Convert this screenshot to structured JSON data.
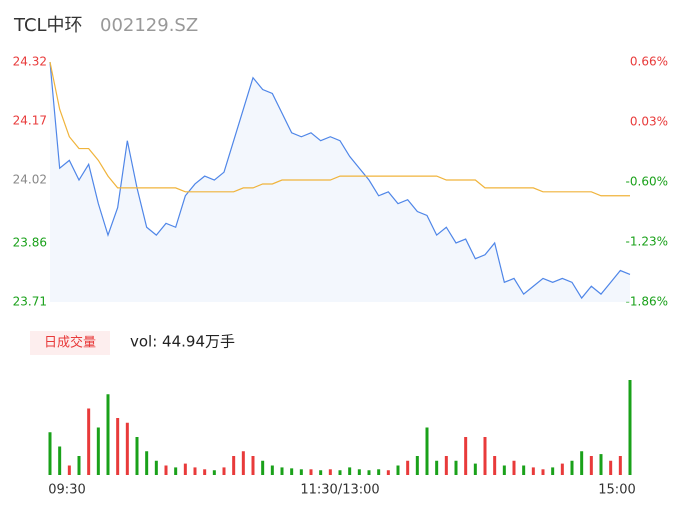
{
  "chart_data": {
    "type": "line",
    "title": "TCL中环",
    "subtitle": "002129.SZ",
    "categories": [
      "09:30",
      null,
      null,
      null,
      null,
      null,
      null,
      null,
      null,
      null,
      null,
      null,
      null,
      null,
      null,
      null,
      null,
      null,
      null,
      null,
      null,
      null,
      null,
      null,
      null,
      null,
      null,
      null,
      null,
      null,
      "11:30/13:00",
      null,
      null,
      null,
      null,
      null,
      null,
      null,
      null,
      null,
      null,
      null,
      null,
      null,
      null,
      null,
      null,
      null,
      null,
      null,
      null,
      null,
      null,
      null,
      null,
      null,
      null,
      null,
      null,
      null,
      "15:00"
    ],
    "series": [
      {
        "name": "price",
        "color": "#4f86e8",
        "values": [
          24.32,
          24.05,
          24.07,
          24.02,
          24.06,
          23.96,
          23.88,
          23.95,
          24.12,
          24.0,
          23.9,
          23.88,
          23.91,
          23.9,
          23.98,
          24.01,
          24.03,
          24.02,
          24.04,
          24.12,
          24.2,
          24.28,
          24.25,
          24.24,
          24.19,
          24.14,
          24.13,
          24.14,
          24.12,
          24.13,
          24.12,
          24.08,
          24.05,
          24.02,
          23.98,
          23.99,
          23.96,
          23.97,
          23.94,
          23.93,
          23.88,
          23.9,
          23.86,
          23.87,
          23.82,
          23.83,
          23.86,
          23.76,
          23.77,
          23.73,
          23.75,
          23.77,
          23.76,
          23.77,
          23.76,
          23.72,
          23.75,
          23.73,
          23.76,
          23.79,
          23.78
        ]
      },
      {
        "name": "average",
        "color": "#f0b43c",
        "values": [
          24.32,
          24.2,
          24.13,
          24.1,
          24.1,
          24.07,
          24.03,
          24.0,
          24.0,
          24.0,
          24.0,
          24.0,
          24.0,
          24.0,
          23.99,
          23.99,
          23.99,
          23.99,
          23.99,
          23.99,
          24.0,
          24.0,
          24.01,
          24.01,
          24.02,
          24.02,
          24.02,
          24.02,
          24.02,
          24.02,
          24.03,
          24.03,
          24.03,
          24.03,
          24.03,
          24.03,
          24.03,
          24.03,
          24.03,
          24.03,
          24.03,
          24.02,
          24.02,
          24.02,
          24.02,
          24.0,
          24.0,
          24.0,
          24.0,
          24.0,
          24.0,
          23.99,
          23.99,
          23.99,
          23.99,
          23.99,
          23.99,
          23.98,
          23.98,
          23.98,
          23.98
        ]
      }
    ],
    "ylim": [
      23.71,
      24.32
    ],
    "yticks": [
      23.71,
      23.86,
      24.02,
      24.17,
      24.32
    ],
    "ytick_colors": [
      "#1aa11a",
      "#1aa11a",
      "#888888",
      "#e83a3a",
      "#e83a3a"
    ],
    "y2lim": [
      -1.86,
      0.66
    ],
    "y2ticks": [
      {
        "value": -1.86,
        "label": "-1.86%"
      },
      {
        "value": -1.23,
        "label": "-1.23%"
      },
      {
        "value": -0.6,
        "label": "-0.60%"
      },
      {
        "value": 0.03,
        "label": "0.03%"
      },
      {
        "value": 0.66,
        "label": "0.66%"
      }
    ],
    "volume_label": "日成交量",
    "volume_text": "vol: 44.94万手",
    "up_color": "#e83a3a",
    "down_color": "#1aa11a",
    "volume": [
      45,
      30,
      10,
      20,
      70,
      50,
      85,
      60,
      55,
      40,
      25,
      15,
      10,
      8,
      12,
      8,
      6,
      5,
      8,
      20,
      25,
      20,
      15,
      10,
      8,
      7,
      6,
      6,
      5,
      6,
      5,
      8,
      6,
      5,
      6,
      5,
      10,
      15,
      20,
      50,
      15,
      20,
      15,
      40,
      12,
      40,
      20,
      10,
      15,
      10,
      8,
      6,
      8,
      12,
      15,
      25,
      20,
      22,
      15,
      20,
      100
    ],
    "volume_ylim": [
      0,
      100
    ]
  }
}
